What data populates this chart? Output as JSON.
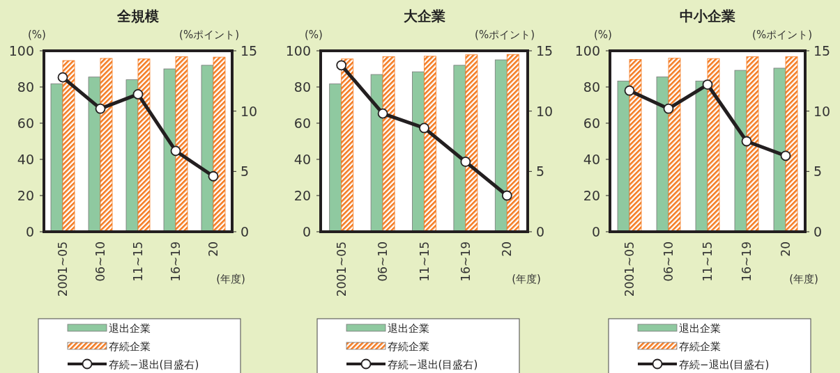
{
  "chart_data": [
    {
      "type": "bar",
      "title": "全規模",
      "categories": [
        "2001~05",
        "06~10",
        "11~15",
        "16~19",
        "20"
      ],
      "xlabel": "(年度)",
      "ylabel": "(%)",
      "y2label": "(%ポイント)",
      "ylim": [
        0,
        100
      ],
      "yticks": [
        0,
        20,
        40,
        60,
        80,
        100
      ],
      "y2lim": [
        0,
        15
      ],
      "y2ticks": [
        0,
        5,
        10,
        15
      ],
      "legend": "bottom",
      "series": [
        {
          "name": "退出企業",
          "color": "#8fc9a0",
          "values": [
            81.8,
            85.5,
            84,
            90,
            92
          ]
        },
        {
          "name": "存続企業",
          "color": "#f47a20",
          "values": [
            94.6,
            95.8,
            95.5,
            96.7,
            96.5
          ]
        },
        {
          "name": "存続−退出(目盛右)",
          "type": "line",
          "axis": "y2",
          "marker": "circle",
          "color": "#231f20",
          "values": [
            12.8,
            10.2,
            11.4,
            6.7,
            4.6
          ]
        }
      ]
    },
    {
      "type": "bar",
      "title": "大企業",
      "categories": [
        "2001~05",
        "06~10",
        "11~15",
        "16~19",
        "20"
      ],
      "xlabel": "(年度)",
      "ylabel": "(%)",
      "y2label": "(%ポイント)",
      "ylim": [
        0,
        100
      ],
      "yticks": [
        0,
        20,
        40,
        60,
        80,
        100
      ],
      "y2lim": [
        0,
        15
      ],
      "y2ticks": [
        0,
        5,
        10,
        15
      ],
      "legend": "bottom",
      "series": [
        {
          "name": "退出企業",
          "color": "#8fc9a0",
          "values": [
            81.7,
            86.9,
            88.4,
            92,
            95
          ]
        },
        {
          "name": "存続企業",
          "color": "#f47a20",
          "values": [
            95.5,
            96.8,
            97,
            97.8,
            98
          ]
        },
        {
          "name": "存続−退出(目盛右)",
          "type": "line",
          "axis": "y2",
          "marker": "circle",
          "color": "#231f20",
          "values": [
            13.8,
            9.8,
            8.6,
            5.8,
            3.0
          ]
        }
      ]
    },
    {
      "type": "bar",
      "title": "中小企業",
      "categories": [
        "2001~05",
        "06~10",
        "11~15",
        "16~19",
        "20"
      ],
      "xlabel": "(年度)",
      "ylabel": "(%)",
      "y2label": "(%ポイント)",
      "ylim": [
        0,
        100
      ],
      "yticks": [
        0,
        20,
        40,
        60,
        80,
        100
      ],
      "y2lim": [
        0,
        15
      ],
      "y2ticks": [
        0,
        5,
        10,
        15
      ],
      "legend": "bottom",
      "series": [
        {
          "name": "退出企業",
          "color": "#8fc9a0",
          "values": [
            83.3,
            85.6,
            83.3,
            89.2,
            90.4
          ]
        },
        {
          "name": "存続企業",
          "color": "#f47a20",
          "values": [
            95.2,
            95.9,
            95.7,
            96.7,
            96.7
          ]
        },
        {
          "name": "存続−退出(目盛右)",
          "type": "line",
          "axis": "y2",
          "marker": "circle",
          "color": "#231f20",
          "values": [
            11.7,
            10.2,
            12.2,
            7.5,
            6.3
          ]
        }
      ]
    }
  ]
}
